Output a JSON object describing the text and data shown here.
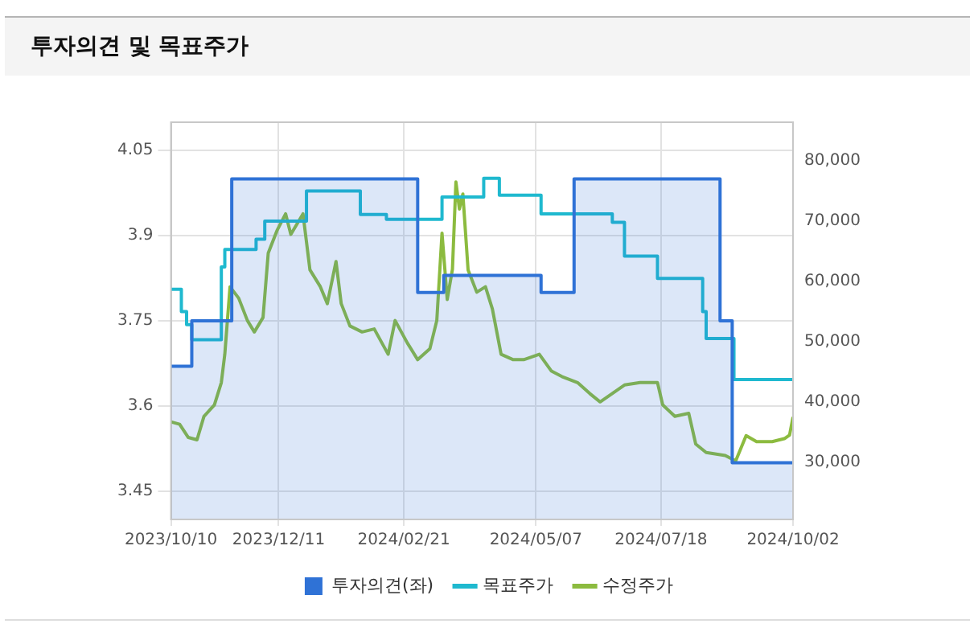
{
  "chart_data": {
    "type": "line",
    "title": "투자의견 및 목표주가",
    "xlim": [
      "2023-10-10",
      "2024-10-02"
    ],
    "xticks": [
      {
        "value": "2023-10-10",
        "label": "2023/10/10"
      },
      {
        "value": "2023-12-11",
        "label": "2023/12/11"
      },
      {
        "value": "2024-02-21",
        "label": "2024/02/21"
      },
      {
        "value": "2024-05-07",
        "label": "2024/05/07"
      },
      {
        "value": "2024-07-18",
        "label": "2024/07/18"
      },
      {
        "value": "2024-10-02",
        "label": "2024/10/02"
      }
    ],
    "ylim": [
      3.4,
      4.1
    ],
    "yticks": [
      3.45,
      3.6,
      3.75,
      3.9,
      4.05
    ],
    "y2lim": [
      20500,
      86400
    ],
    "y2ticks": [
      {
        "value": 30000,
        "label": "30,000"
      },
      {
        "value": 40000,
        "label": "40,000"
      },
      {
        "value": 50000,
        "label": "50,000"
      },
      {
        "value": 60000,
        "label": "60,000"
      },
      {
        "value": 70000,
        "label": "70,000"
      },
      {
        "value": 80000,
        "label": "80,000"
      }
    ],
    "grid": true,
    "legend": "bottom",
    "marker": "none",
    "series": [
      {
        "name": "투자의견(좌)",
        "type": "area",
        "color": "#2f72d6",
        "x": [
          "2023-10-10",
          "2023-10-22",
          "2023-10-22",
          "2023-11-14",
          "2023-11-14",
          "2024-02-29",
          "2024-02-29",
          "2024-03-15",
          "2024-03-15",
          "2024-05-10",
          "2024-05-10",
          "2024-05-29",
          "2024-05-29",
          "2024-08-21",
          "2024-08-21",
          "2024-08-28",
          "2024-08-28",
          "2024-10-02"
        ],
        "values": [
          3.67,
          3.67,
          3.75,
          3.75,
          4.0,
          4.0,
          3.8,
          3.8,
          3.83,
          3.83,
          3.8,
          3.8,
          4.0,
          4.0,
          3.75,
          3.75,
          3.5,
          3.5
        ]
      },
      {
        "name": "목표주가",
        "type": "step",
        "axis": "y2",
        "color": "#1fb9cf",
        "x": [
          "2023-10-10",
          "2023-10-16",
          "2023-10-19",
          "2023-10-22",
          "2023-11-08",
          "2023-11-10",
          "2023-11-28",
          "2023-12-03",
          "2023-12-27",
          "2024-01-27",
          "2024-02-11",
          "2024-03-14",
          "2024-04-07",
          "2024-04-16",
          "2024-05-10",
          "2024-06-20",
          "2024-06-27",
          "2024-07-16",
          "2024-08-11",
          "2024-08-13",
          "2024-08-29",
          "2024-10-02"
        ],
        "values": [
          58700,
          55000,
          52800,
          50300,
          62400,
          65300,
          67000,
          70000,
          75000,
          71100,
          70300,
          74000,
          77100,
          74300,
          71200,
          69800,
          64200,
          60500,
          55000,
          50500,
          43700,
          43700
        ]
      },
      {
        "name": "수정주가",
        "type": "line",
        "axis": "y2",
        "color": "#8cbb3f",
        "x": [
          "2023-10-10",
          "2023-10-15",
          "2023-10-20",
          "2023-10-25",
          "2023-10-29",
          "2023-11-04",
          "2023-11-08",
          "2023-11-10",
          "2023-11-13",
          "2023-11-18",
          "2023-11-23",
          "2023-11-27",
          "2023-12-02",
          "2023-12-05",
          "2023-12-10",
          "2023-12-15",
          "2023-12-18",
          "2023-12-25",
          "2023-12-29",
          "2024-01-04",
          "2024-01-08",
          "2024-01-13",
          "2024-01-16",
          "2024-01-21",
          "2024-01-28",
          "2024-02-04",
          "2024-02-12",
          "2024-02-16",
          "2024-02-23",
          "2024-02-29",
          "2024-03-07",
          "2024-03-11",
          "2024-03-14",
          "2024-03-17",
          "2024-03-20",
          "2024-03-22",
          "2024-03-24",
          "2024-03-26",
          "2024-03-29",
          "2024-04-03",
          "2024-04-08",
          "2024-04-12",
          "2024-04-17",
          "2024-04-24",
          "2024-04-30",
          "2024-05-09",
          "2024-05-16",
          "2024-05-22",
          "2024-05-31",
          "2024-06-07",
          "2024-06-13",
          "2024-06-20",
          "2024-06-27",
          "2024-07-06",
          "2024-07-16",
          "2024-07-19",
          "2024-07-26",
          "2024-08-03",
          "2024-08-07",
          "2024-08-13",
          "2024-08-24",
          "2024-08-30",
          "2024-09-05",
          "2024-09-11",
          "2024-09-20",
          "2024-09-27",
          "2024-09-30",
          "2024-10-02"
        ],
        "values": [
          36700,
          36300,
          34100,
          33700,
          37600,
          39500,
          43200,
          47900,
          59100,
          57200,
          53500,
          51600,
          54000,
          64700,
          68400,
          71200,
          67800,
          71200,
          61900,
          59100,
          56300,
          63300,
          56300,
          52600,
          51600,
          52100,
          47900,
          53500,
          49800,
          47000,
          48800,
          53500,
          68000,
          57000,
          62000,
          76500,
          72000,
          74500,
          61900,
          58200,
          59100,
          55400,
          47900,
          47000,
          47000,
          47900,
          45100,
          44200,
          43200,
          41400,
          40000,
          41400,
          42800,
          43200,
          43200,
          39500,
          37600,
          38100,
          33000,
          31600,
          31100,
          30200,
          34400,
          33400,
          33400,
          33900,
          34500,
          37500
        ]
      }
    ]
  }
}
